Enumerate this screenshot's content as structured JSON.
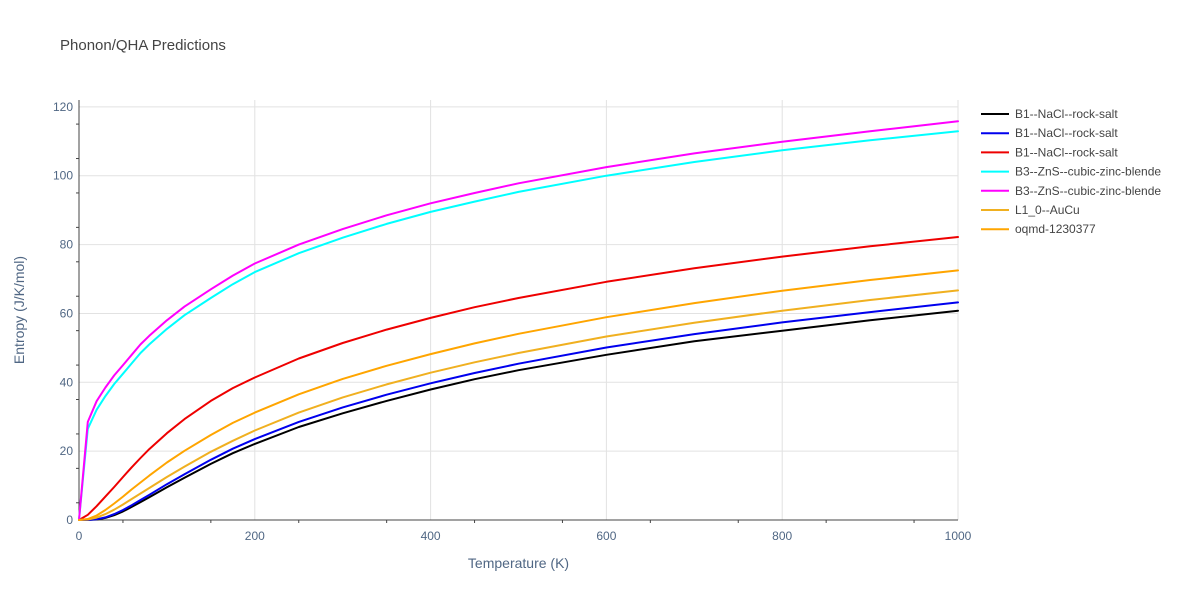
{
  "chart_data": {
    "type": "line",
    "title": "Phonon/QHA Predictions",
    "xlabel": "Temperature (K)",
    "ylabel": "Entropy (J/K/mol)",
    "xlim": [
      0,
      1000
    ],
    "ylim": [
      0,
      122
    ],
    "x_ticks": [
      0,
      200,
      400,
      600,
      800,
      1000
    ],
    "y_ticks": [
      0,
      20,
      40,
      60,
      80,
      100,
      120
    ],
    "grid": true,
    "legend_position": "top-right, outside plot",
    "x": [
      0,
      10,
      20,
      30,
      40,
      50,
      60,
      70,
      80,
      100,
      120,
      150,
      175,
      200,
      250,
      300,
      350,
      400,
      450,
      500,
      600,
      700,
      800,
      900,
      1000
    ],
    "series": [
      {
        "name": "B1--NaCl--rock-salt",
        "color": "#000000",
        "values": [
          0,
          0.02,
          0.15,
          0.6,
          1.4,
          2.5,
          3.8,
          5.2,
          6.6,
          9.5,
          12.3,
          16.3,
          19.4,
          22.1,
          27.0,
          31.0,
          34.6,
          37.9,
          40.9,
          43.5,
          48.0,
          51.9,
          55.0,
          58.0,
          60.8
        ]
      },
      {
        "name": "B1--NaCl--rock-salt",
        "color": "#0000ee",
        "values": [
          0,
          0.03,
          0.2,
          0.75,
          1.7,
          2.9,
          4.3,
          5.8,
          7.3,
          10.4,
          13.3,
          17.5,
          20.7,
          23.5,
          28.5,
          32.7,
          36.4,
          39.7,
          42.7,
          45.4,
          50.1,
          54.0,
          57.4,
          60.4,
          63.2
        ]
      },
      {
        "name": "B1--NaCl--rock-salt",
        "color": "#ee0000",
        "values": [
          0,
          1.5,
          4.0,
          6.8,
          9.6,
          12.5,
          15.3,
          18.0,
          20.6,
          25.2,
          29.3,
          34.6,
          38.3,
          41.4,
          46.9,
          51.4,
          55.3,
          58.7,
          61.8,
          64.5,
          69.2,
          73.1,
          76.5,
          79.5,
          82.2
        ]
      },
      {
        "name": "B3--ZnS--cubic-zinc-blende",
        "color": "#00ffff",
        "values": [
          0,
          26.5,
          32.0,
          36.0,
          39.5,
          42.5,
          45.5,
          48.5,
          51.0,
          55.5,
          59.5,
          64.5,
          68.5,
          72.0,
          77.5,
          82.0,
          86.0,
          89.5,
          92.5,
          95.3,
          100.0,
          104.0,
          107.4,
          110.3,
          112.9
        ]
      },
      {
        "name": "B3--ZnS--cubic-zinc-blende",
        "color": "#ff00ff",
        "values": [
          0,
          28.5,
          34.5,
          38.5,
          42.0,
          45.0,
          48.0,
          51.0,
          53.5,
          58.0,
          62.0,
          67.0,
          71.0,
          74.5,
          80.0,
          84.5,
          88.5,
          92.0,
          95.0,
          97.8,
          102.5,
          106.5,
          109.9,
          112.9,
          115.8
        ]
      },
      {
        "name": "L1_0--AuCu",
        "color": "#f0b020",
        "values": [
          0,
          0.15,
          0.7,
          1.7,
          3.0,
          4.5,
          6.1,
          7.7,
          9.3,
          12.5,
          15.5,
          19.8,
          23.0,
          26.0,
          31.2,
          35.6,
          39.4,
          42.8,
          45.8,
          48.5,
          53.3,
          57.3,
          60.8,
          63.9,
          66.7
        ]
      },
      {
        "name": "oqmd-1230377",
        "color": "#ffa500",
        "values": [
          0,
          0.3,
          1.3,
          2.9,
          4.8,
          6.8,
          8.9,
          10.9,
          12.9,
          16.7,
          20.1,
          24.7,
          28.2,
          31.2,
          36.5,
          41.0,
          44.8,
          48.2,
          51.3,
          54.1,
          58.9,
          63.0,
          66.6,
          69.7,
          72.5
        ]
      }
    ]
  }
}
